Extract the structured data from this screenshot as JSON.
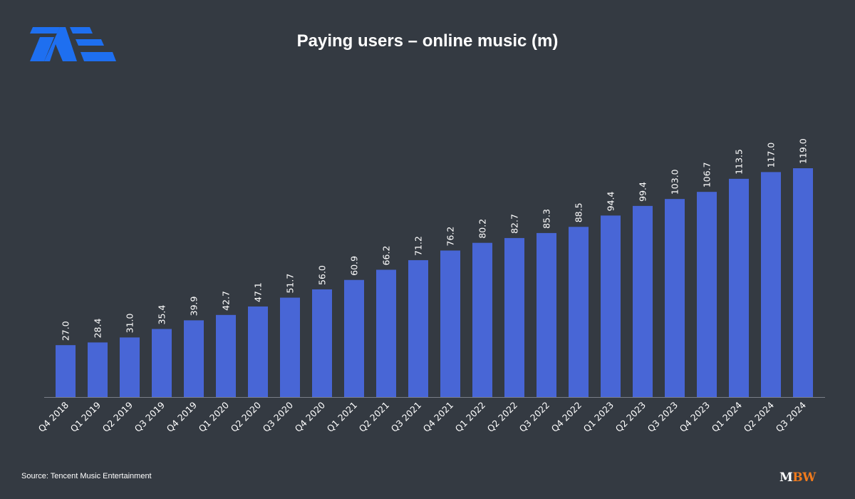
{
  "brand": {
    "logo_text": "TME",
    "footer_logo_text": "MBW",
    "footer_logo_colors": [
      "#ffffff",
      "#f07a1c"
    ]
  },
  "source": "Source: Tencent Music Entertainment",
  "chart_data": {
    "type": "bar",
    "title": "Paying users – online music (m)",
    "xlabel": "",
    "ylabel": "",
    "ylim": [
      0,
      119
    ],
    "grid": false,
    "bar_color": "#4866d6",
    "background": "#343a42",
    "categories": [
      "Q4 2018",
      "Q1 2019",
      "Q2 2019",
      "Q3 2019",
      "Q4 2019",
      "Q1 2020",
      "Q2 2020",
      "Q3 2020",
      "Q4 2020",
      "Q1 2021",
      "Q2 2021",
      "Q3 2021",
      "Q4 2021",
      "Q1 2022",
      "Q2 2022",
      "Q3 2022",
      "Q4 2022",
      "Q1 2023",
      "Q2 2023",
      "Q3 2023",
      "Q4 2023",
      "Q1 2024",
      "Q2 2024",
      "Q3 2024"
    ],
    "values": [
      27.0,
      28.4,
      31.0,
      35.4,
      39.9,
      42.7,
      47.1,
      51.7,
      56.0,
      60.9,
      66.2,
      71.2,
      76.2,
      80.2,
      82.7,
      85.3,
      88.5,
      94.4,
      99.4,
      103.0,
      106.7,
      113.5,
      117.0,
      119.0
    ],
    "data_labels": [
      "27.0",
      "28.4",
      "31.0",
      "35.4",
      "39.9",
      "42.7",
      "47.1",
      "51.7",
      "56.0",
      "60.9",
      "66.2",
      "71.2",
      "76.2",
      "80.2",
      "82.7",
      "85.3",
      "88.5",
      "94.4",
      "99.4",
      "103.0",
      "106.7",
      "113.5",
      "117.0",
      "119.0"
    ]
  }
}
